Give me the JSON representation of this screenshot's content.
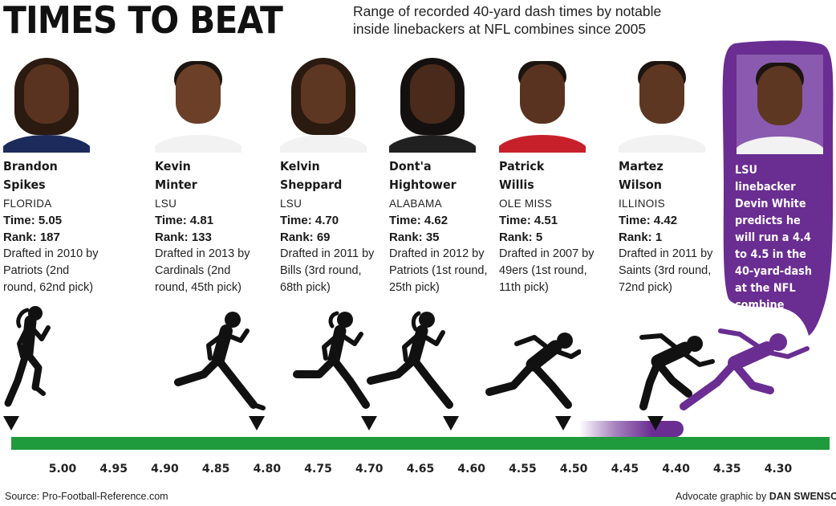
{
  "header": {
    "title": "TIMES TO BEAT",
    "subtitle": "Range of recorded 40-yard dash times by notable inside linebackers at NFL combines since 2005"
  },
  "players": [
    {
      "first": "Brandon",
      "last": "Spikes",
      "school": "FLORIDA",
      "time_text": "Time: 5.05",
      "rank_text": "Rank: 187",
      "drafted": "Drafted in 2010 by Patriots (2nd round, 62nd pick)",
      "shirt_color": "#1d2b5c"
    },
    {
      "first": "Kevin",
      "last": "Minter",
      "school": "LSU",
      "time_text": "Time: 4.81",
      "rank_text": "Rank: 133",
      "drafted": "Drafted in 2013 by Cardinals (2nd round, 45th pick)",
      "shirt_color": "#f2f2f2"
    },
    {
      "first": "Kelvin",
      "last": "Sheppard",
      "school": "LSU",
      "time_text": "Time: 4.70",
      "rank_text": "Rank: 69",
      "drafted": "Drafted in 2011 by Bills (3rd round, 68th pick)",
      "shirt_color": "#f2f2f2"
    },
    {
      "first": "Dont'a",
      "last": "Hightower",
      "school": "ALABAMA",
      "time_text": "Time: 4.62",
      "rank_text": "Rank: 35",
      "drafted": "Drafted in 2012 by Patriots (1st round, 25th pick)",
      "shirt_color": "#202020"
    },
    {
      "first": "Patrick",
      "last": "Willis",
      "school": "OLE MISS",
      "time_text": "Time: 4.51",
      "rank_text": "Rank: 5",
      "drafted": "Drafted in 2007 by 49ers (1st round, 11th pick)",
      "shirt_color": "#c8202a"
    },
    {
      "first": "Martez",
      "last": "Wilson",
      "school": "ILLINOIS",
      "time_text": "Time: 4.42",
      "rank_text": "Rank: 1",
      "drafted": "Drafted in 2011 by Saints (3rd round, 72nd pick)",
      "shirt_color": "#f2f2f2"
    }
  ],
  "callout": {
    "text": "LSU linebacker Devin White predicts he will run a 4.4 to 4.5 in the 40-yard-dash at the NFL combine",
    "color": "#6a2d91"
  },
  "chart_data": {
    "type": "scatter",
    "title": "TIMES TO BEAT",
    "subtitle": "Range of recorded 40-yard dash times by notable inside linebackers at NFL combines since 2005",
    "x_axis": {
      "ticks": [
        "5.00",
        "4.95",
        "4.90",
        "4.85",
        "4.80",
        "4.75",
        "4.70",
        "4.65",
        "4.60",
        "4.55",
        "4.50",
        "4.45",
        "4.40",
        "4.35",
        "4.30"
      ],
      "range": [
        5.05,
        4.26
      ],
      "reversed": true,
      "label": ""
    },
    "points": [
      {
        "label": "Brandon Spikes",
        "x": 5.05
      },
      {
        "label": "Kevin Minter",
        "x": 4.81
      },
      {
        "label": "Kelvin Sheppard",
        "x": 4.7
      },
      {
        "label": "Dont'a Hightower",
        "x": 4.62
      },
      {
        "label": "Patrick Willis",
        "x": 4.51
      },
      {
        "label": "Martez Wilson",
        "x": 4.42
      }
    ],
    "projection": {
      "label": "Devin White",
      "range": [
        4.5,
        4.4
      ]
    },
    "colors": {
      "track": "#1f9a3c",
      "marker": "#111111",
      "projection": "#6a2d91"
    }
  },
  "footer": {
    "source": "Source: Pro-Football-Reference.com",
    "credit_prefix": "Advocate graphic by ",
    "credit_name": "DAN SWENSON"
  }
}
